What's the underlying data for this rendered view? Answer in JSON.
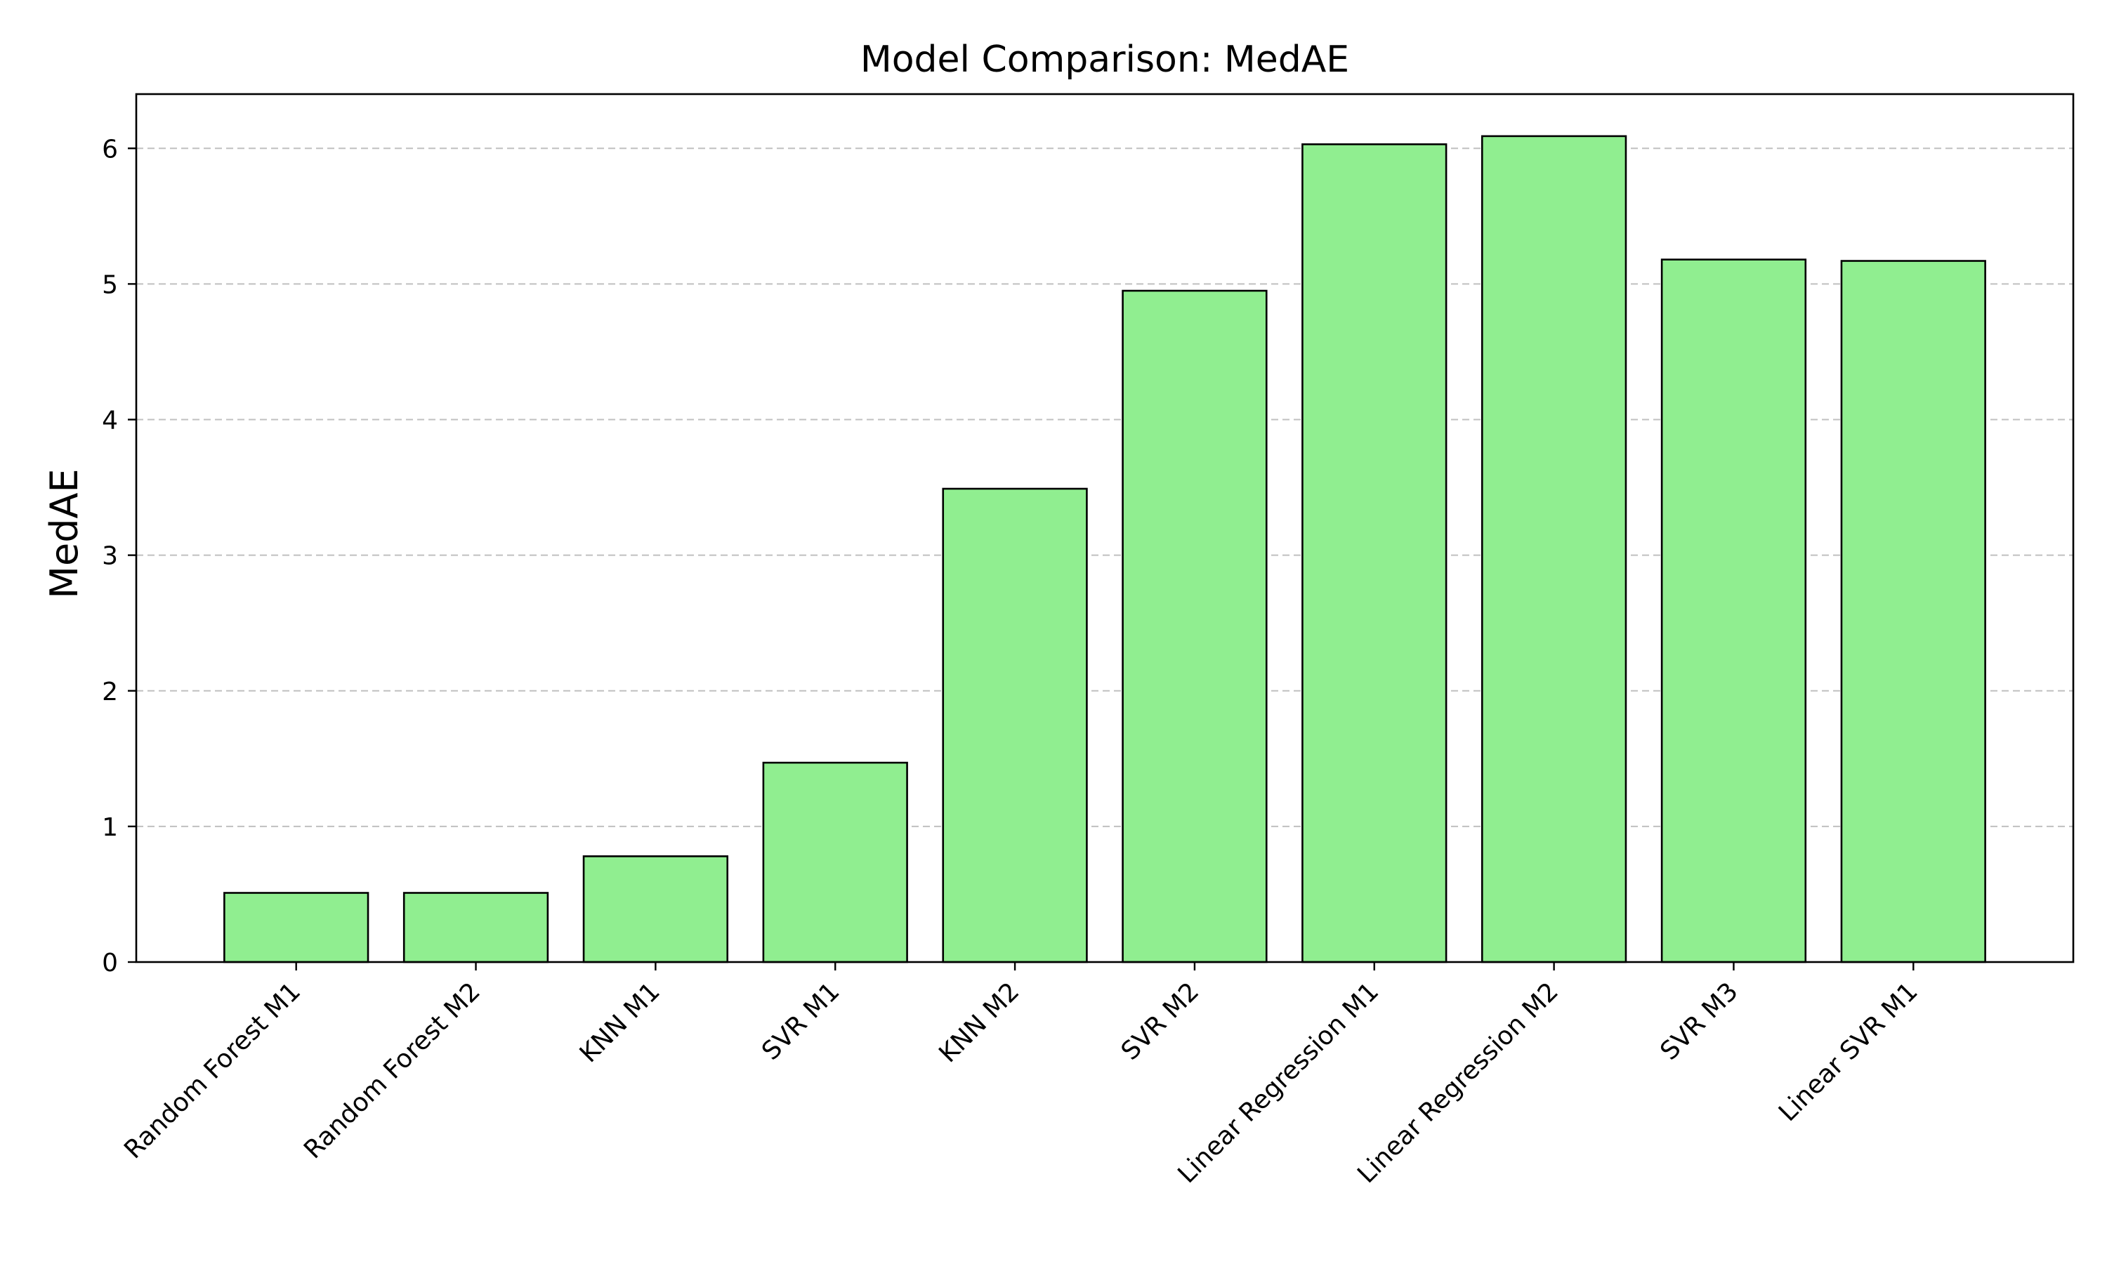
{
  "chart_data": {
    "type": "bar",
    "title": "Model Comparison: MedAE",
    "xlabel": "",
    "ylabel": "MedAE",
    "categories": [
      "Random Forest M1",
      "Random Forest M2",
      "KNN M1",
      "SVR M1",
      "KNN M2",
      "SVR M2",
      "Linear Regression M1",
      "Linear Regression M2",
      "SVR M3",
      "Linear SVR M1"
    ],
    "values": [
      0.51,
      0.51,
      0.78,
      1.47,
      3.49,
      4.95,
      6.03,
      6.09,
      5.18,
      5.17
    ],
    "ylim": [
      0,
      6.4
    ],
    "yticks": [
      0,
      1,
      2,
      3,
      4,
      5,
      6
    ],
    "grid": {
      "y": true,
      "style": "dashed"
    },
    "legend": "none",
    "colors": {
      "bar_fill": "#90ee90",
      "bar_edge": "#000000",
      "grid": "#c0c0c0",
      "axis": "#000000"
    }
  }
}
